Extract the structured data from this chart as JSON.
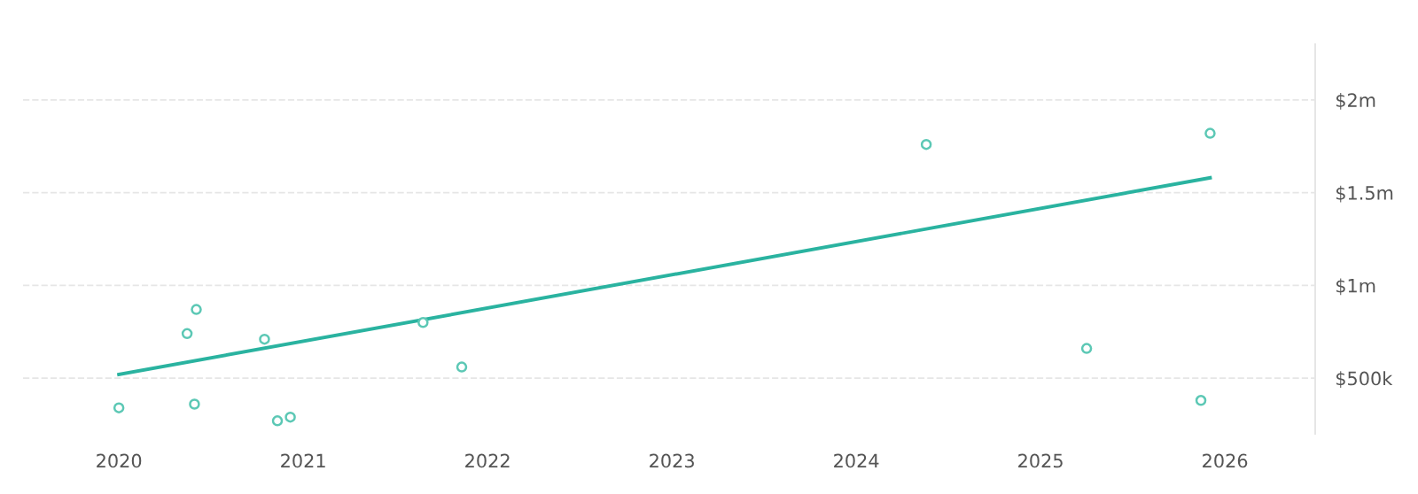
{
  "chart_data": {
    "type": "scatter",
    "series": [
      {
        "color": "#5cc8b5",
        "marker": "circle",
        "x": [
          2020.0,
          2020.37,
          2020.42,
          2020.41,
          2020.79,
          2020.86,
          2020.93,
          2021.65,
          2021.86,
          2024.38,
          2025.25,
          2025.87,
          2025.92
        ],
        "values": [
          340000,
          740000,
          870000,
          360000,
          710000,
          270000,
          290000,
          800000,
          560000,
          1760000,
          660000,
          380000,
          1820000
        ]
      },
      {
        "type": "line",
        "color": "#2ab3a0",
        "marker": "none",
        "line_style": "solid",
        "x": [
          2020.0,
          2025.92
        ],
        "values": [
          520000,
          1580000
        ]
      }
    ],
    "xlim": [
      2019.48,
      2026.49
    ],
    "ylim": [
      200000,
      2300000
    ],
    "xticks": [
      2020,
      2021,
      2022,
      2023,
      2024,
      2025,
      2026
    ],
    "yticks": [
      {
        "value": 500000,
        "label": "$500k"
      },
      {
        "value": 1000000,
        "label": "$1m"
      },
      {
        "value": 1500000,
        "label": "$1.5m"
      },
      {
        "value": 2000000,
        "label": "$2m"
      }
    ],
    "grid": "y"
  }
}
